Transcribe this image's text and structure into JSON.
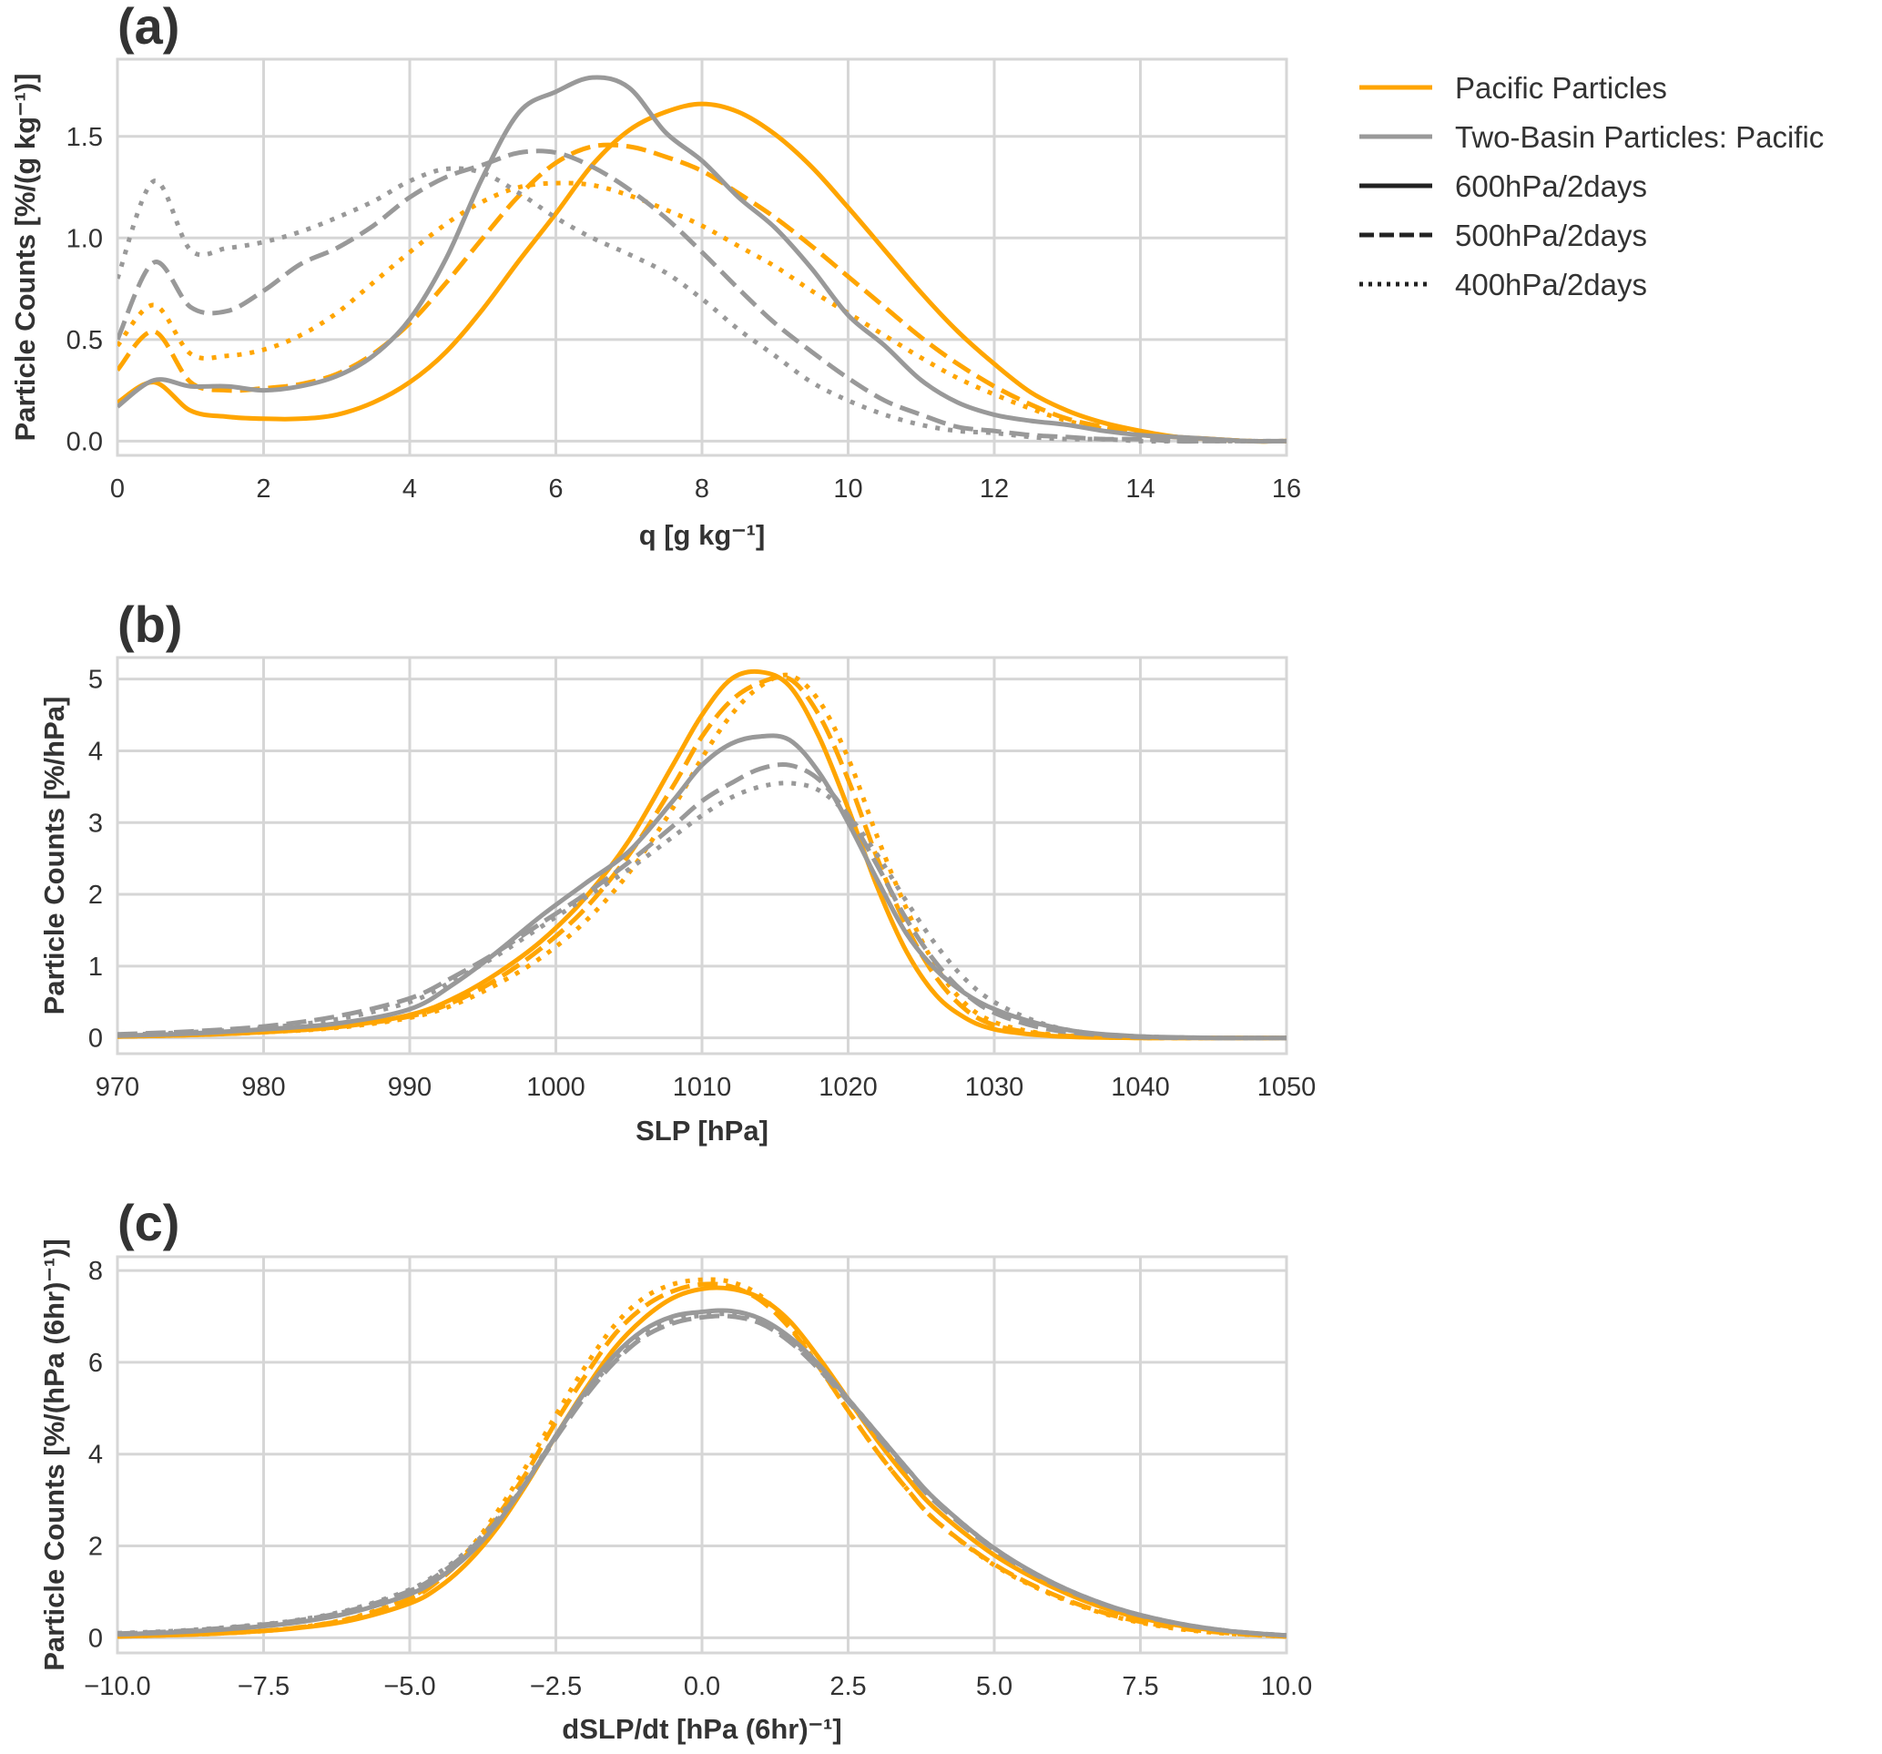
{
  "colors": {
    "pacific": "#FFA500",
    "two_basin": "#999999",
    "legend_style": "#222222",
    "grid": "#d6d6d6"
  },
  "legend": {
    "entries": [
      {
        "label": "Pacific Particles",
        "kind": "color",
        "color": "#FFA500",
        "dash": "solid"
      },
      {
        "label": "Two-Basin Particles: Pacific",
        "kind": "color",
        "color": "#999999",
        "dash": "solid"
      },
      {
        "label": "600hPa/2days",
        "kind": "style",
        "color": "#222222",
        "dash": "solid"
      },
      {
        "label": "500hPa/2days",
        "kind": "style",
        "color": "#222222",
        "dash": "dashed"
      },
      {
        "label": "400hPa/2days",
        "kind": "style",
        "color": "#222222",
        "dash": "dotted"
      }
    ]
  },
  "chart_data": [
    {
      "panel": "(a)",
      "type": "line",
      "xlabel": "q [g kg⁻¹]",
      "ylabel": "Particle Counts [%/(g kg⁻¹)]",
      "xlim": [
        0,
        16
      ],
      "ylim": [
        -0.07,
        1.88
      ],
      "xticks": [
        0,
        2,
        4,
        6,
        8,
        10,
        12,
        14,
        16
      ],
      "xtick_labels": [
        "0",
        "2",
        "4",
        "6",
        "8",
        "10",
        "12",
        "14",
        "16"
      ],
      "yticks": [
        0,
        0.5,
        1.0,
        1.5
      ],
      "ytick_labels": [
        "0.0",
        "0.5",
        "1.0",
        "1.5"
      ],
      "grid": true,
      "x": [
        0,
        0.5,
        1,
        1.5,
        2,
        2.5,
        3,
        3.5,
        4,
        4.5,
        5,
        5.5,
        6,
        6.5,
        7,
        7.5,
        8,
        8.5,
        9,
        9.5,
        10,
        10.5,
        11,
        11.5,
        12,
        12.5,
        13,
        13.5,
        14,
        14.5,
        15,
        15.5,
        16
      ],
      "series": [
        {
          "name": "Pacific 600hPa/2days",
          "group": "pacific",
          "dash": "solid",
          "values": [
            0.19,
            0.29,
            0.15,
            0.12,
            0.11,
            0.11,
            0.13,
            0.19,
            0.29,
            0.44,
            0.65,
            0.89,
            1.12,
            1.36,
            1.53,
            1.62,
            1.66,
            1.62,
            1.51,
            1.35,
            1.15,
            0.94,
            0.73,
            0.54,
            0.38,
            0.24,
            0.15,
            0.09,
            0.05,
            0.02,
            0.01,
            0.0,
            0.0
          ]
        },
        {
          "name": "Pacific 500hPa/2days",
          "group": "pacific",
          "dash": "dashed",
          "values": [
            0.35,
            0.54,
            0.29,
            0.25,
            0.26,
            0.28,
            0.33,
            0.43,
            0.58,
            0.78,
            1.0,
            1.21,
            1.37,
            1.45,
            1.45,
            1.4,
            1.33,
            1.22,
            1.1,
            0.96,
            0.81,
            0.66,
            0.51,
            0.38,
            0.27,
            0.18,
            0.11,
            0.07,
            0.04,
            0.02,
            0.01,
            0.0,
            0.0
          ]
        },
        {
          "name": "Pacific 400hPa/2days",
          "group": "pacific",
          "dash": "dotted",
          "values": [
            0.47,
            0.67,
            0.43,
            0.42,
            0.45,
            0.52,
            0.63,
            0.78,
            0.93,
            1.07,
            1.18,
            1.25,
            1.27,
            1.26,
            1.21,
            1.14,
            1.06,
            0.96,
            0.86,
            0.74,
            0.63,
            0.52,
            0.41,
            0.31,
            0.23,
            0.16,
            0.1,
            0.06,
            0.03,
            0.02,
            0.01,
            0.0,
            0.0
          ]
        },
        {
          "name": "Two-Basin 600hPa/2days",
          "group": "two_basin",
          "dash": "solid",
          "values": [
            0.17,
            0.3,
            0.27,
            0.27,
            0.25,
            0.27,
            0.32,
            0.42,
            0.6,
            0.9,
            1.3,
            1.62,
            1.72,
            1.79,
            1.74,
            1.52,
            1.38,
            1.2,
            1.05,
            0.85,
            0.62,
            0.47,
            0.3,
            0.19,
            0.13,
            0.1,
            0.08,
            0.05,
            0.03,
            0.02,
            0.01,
            0.0,
            0.0
          ]
        },
        {
          "name": "Two-Basin 500hPa/2days",
          "group": "two_basin",
          "dash": "dashed",
          "values": [
            0.5,
            0.88,
            0.66,
            0.64,
            0.74,
            0.87,
            0.95,
            1.06,
            1.2,
            1.3,
            1.36,
            1.42,
            1.42,
            1.35,
            1.24,
            1.1,
            0.93,
            0.75,
            0.58,
            0.44,
            0.31,
            0.2,
            0.13,
            0.07,
            0.05,
            0.03,
            0.02,
            0.01,
            0.01,
            0.0,
            0.0,
            0.0,
            0.0
          ]
        },
        {
          "name": "Two-Basin 400hPa/2days",
          "group": "two_basin",
          "dash": "dotted",
          "values": [
            0.8,
            1.28,
            0.94,
            0.95,
            0.98,
            1.03,
            1.1,
            1.18,
            1.28,
            1.34,
            1.32,
            1.22,
            1.1,
            1.0,
            0.92,
            0.83,
            0.7,
            0.55,
            0.42,
            0.29,
            0.2,
            0.13,
            0.08,
            0.05,
            0.04,
            0.02,
            0.01,
            0.01,
            0.0,
            0.0,
            0.0,
            0.0,
            0.0
          ]
        }
      ]
    },
    {
      "panel": "(b)",
      "type": "line",
      "xlabel": "SLP [hPa]",
      "ylabel": "Particle Counts [%/hPa]",
      "xlim": [
        970,
        1050
      ],
      "ylim": [
        -0.22,
        5.3
      ],
      "xticks": [
        970,
        980,
        990,
        1000,
        1010,
        1020,
        1030,
        1040,
        1050
      ],
      "xtick_labels": [
        "970",
        "980",
        "990",
        "1000",
        "1010",
        "1020",
        "1030",
        "1040",
        "1050"
      ],
      "yticks": [
        0,
        1,
        2,
        3,
        4,
        5
      ],
      "ytick_labels": [
        "0",
        "1",
        "2",
        "3",
        "4",
        "5"
      ],
      "grid": true,
      "x": [
        970,
        975,
        980,
        985,
        990,
        993,
        996,
        999,
        1002,
        1005,
        1008,
        1010,
        1012,
        1014,
        1016,
        1018,
        1020,
        1022,
        1024,
        1026,
        1028,
        1030,
        1033,
        1036,
        1040,
        1045,
        1050
      ],
      "series": [
        {
          "name": "Pacific 600hPa/2days",
          "group": "pacific",
          "dash": "solid",
          "values": [
            0.02,
            0.04,
            0.08,
            0.15,
            0.32,
            0.55,
            0.9,
            1.35,
            1.95,
            2.75,
            3.8,
            4.5,
            5.0,
            5.1,
            4.9,
            4.2,
            3.2,
            2.1,
            1.2,
            0.6,
            0.28,
            0.12,
            0.04,
            0.01,
            0.0,
            0.0,
            0.0
          ]
        },
        {
          "name": "Pacific 500hPa/2days",
          "group": "pacific",
          "dash": "dashed",
          "values": [
            0.02,
            0.04,
            0.08,
            0.15,
            0.3,
            0.5,
            0.82,
            1.25,
            1.8,
            2.55,
            3.5,
            4.2,
            4.7,
            4.95,
            5.0,
            4.5,
            3.6,
            2.5,
            1.55,
            0.85,
            0.4,
            0.18,
            0.06,
            0.02,
            0.0,
            0.0,
            0.0
          ]
        },
        {
          "name": "Pacific 400hPa/2days",
          "group": "pacific",
          "dash": "dotted",
          "values": [
            0.02,
            0.04,
            0.08,
            0.14,
            0.28,
            0.46,
            0.75,
            1.12,
            1.62,
            2.3,
            3.2,
            3.9,
            4.5,
            4.9,
            5.05,
            4.7,
            3.9,
            2.8,
            1.8,
            1.0,
            0.48,
            0.22,
            0.07,
            0.02,
            0.0,
            0.0,
            0.0
          ]
        },
        {
          "name": "Two-Basin 600hPa/2days",
          "group": "two_basin",
          "dash": "solid",
          "values": [
            0.03,
            0.06,
            0.12,
            0.2,
            0.4,
            0.75,
            1.2,
            1.7,
            2.15,
            2.6,
            3.3,
            3.8,
            4.1,
            4.2,
            4.15,
            3.7,
            3.0,
            2.2,
            1.45,
            0.95,
            0.62,
            0.4,
            0.2,
            0.08,
            0.02,
            0.0,
            0.0
          ]
        },
        {
          "name": "Two-Basin 500hPa/2days",
          "group": "two_basin",
          "dash": "dashed",
          "values": [
            0.05,
            0.09,
            0.16,
            0.3,
            0.55,
            0.85,
            1.2,
            1.6,
            2.0,
            2.45,
            2.95,
            3.3,
            3.55,
            3.75,
            3.8,
            3.6,
            3.1,
            2.4,
            1.65,
            1.05,
            0.62,
            0.35,
            0.15,
            0.06,
            0.01,
            0.0,
            0.0
          ]
        },
        {
          "name": "Two-Basin 400hPa/2days",
          "group": "two_basin",
          "dash": "dotted",
          "values": [
            0.04,
            0.08,
            0.14,
            0.26,
            0.5,
            0.8,
            1.15,
            1.55,
            1.95,
            2.35,
            2.8,
            3.1,
            3.35,
            3.5,
            3.55,
            3.45,
            3.1,
            2.55,
            1.9,
            1.3,
            0.82,
            0.5,
            0.22,
            0.08,
            0.02,
            0.0,
            0.0
          ]
        }
      ]
    },
    {
      "panel": "(c)",
      "type": "line",
      "xlabel": "dSLP/dt [hPa (6hr)⁻¹]",
      "ylabel": "Particle Counts [%/(hPa (6hr)⁻¹)]",
      "xlim": [
        -10,
        10
      ],
      "ylim": [
        -0.33,
        8.3
      ],
      "xticks": [
        -10,
        -7.5,
        -5,
        -2.5,
        0,
        2.5,
        5,
        7.5,
        10
      ],
      "xtick_labels": [
        "−10.0",
        "−7.5",
        "−5.0",
        "−2.5",
        "0.0",
        "2.5",
        "5.0",
        "7.5",
        "10.0"
      ],
      "yticks": [
        0,
        2,
        4,
        6,
        8
      ],
      "ytick_labels": [
        "0",
        "2",
        "4",
        "6",
        "8"
      ],
      "grid": true,
      "x": [
        -10,
        -9,
        -8,
        -7,
        -6,
        -5,
        -4.5,
        -4,
        -3.5,
        -3,
        -2.5,
        -2,
        -1.5,
        -1,
        -0.5,
        0,
        0.5,
        1,
        1.5,
        2,
        2.5,
        3,
        3.5,
        4,
        5,
        6,
        7,
        8,
        9,
        10
      ],
      "series": [
        {
          "name": "Pacific 600hPa/2days",
          "group": "pacific",
          "dash": "solid",
          "values": [
            0.03,
            0.06,
            0.11,
            0.2,
            0.38,
            0.75,
            1.1,
            1.65,
            2.4,
            3.35,
            4.4,
            5.4,
            6.3,
            6.95,
            7.4,
            7.6,
            7.6,
            7.4,
            6.9,
            6.1,
            5.2,
            4.3,
            3.5,
            2.8,
            1.8,
            1.1,
            0.6,
            0.3,
            0.13,
            0.04
          ]
        },
        {
          "name": "Pacific 500hPa/2days",
          "group": "pacific",
          "dash": "dashed",
          "values": [
            0.03,
            0.06,
            0.11,
            0.21,
            0.42,
            0.85,
            1.25,
            1.85,
            2.65,
            3.6,
            4.7,
            5.7,
            6.6,
            7.2,
            7.55,
            7.7,
            7.65,
            7.35,
            6.75,
            5.9,
            4.95,
            4.05,
            3.25,
            2.55,
            1.6,
            0.95,
            0.5,
            0.24,
            0.1,
            0.03
          ]
        },
        {
          "name": "Pacific 400hPa/2days",
          "group": "pacific",
          "dash": "dotted",
          "values": [
            0.03,
            0.06,
            0.11,
            0.21,
            0.43,
            0.88,
            1.3,
            1.9,
            2.75,
            3.75,
            4.85,
            5.9,
            6.8,
            7.4,
            7.7,
            7.8,
            7.75,
            7.45,
            6.8,
            5.9,
            4.95,
            4.05,
            3.25,
            2.55,
            1.58,
            0.93,
            0.48,
            0.22,
            0.09,
            0.03
          ]
        },
        {
          "name": "Two-Basin 600hPa/2days",
          "group": "two_basin",
          "dash": "solid",
          "values": [
            0.07,
            0.12,
            0.2,
            0.32,
            0.55,
            0.95,
            1.3,
            1.8,
            2.5,
            3.4,
            4.4,
            5.35,
            6.15,
            6.7,
            7.0,
            7.1,
            7.12,
            6.95,
            6.55,
            5.95,
            5.2,
            4.45,
            3.7,
            3.0,
            1.95,
            1.2,
            0.68,
            0.35,
            0.15,
            0.05
          ]
        },
        {
          "name": "Two-Basin 500hPa/2days",
          "group": "two_basin",
          "dash": "dashed",
          "values": [
            0.09,
            0.14,
            0.23,
            0.36,
            0.6,
            1.02,
            1.38,
            1.88,
            2.55,
            3.4,
            4.35,
            5.25,
            6.0,
            6.55,
            6.85,
            6.98,
            7.0,
            6.85,
            6.45,
            5.85,
            5.15,
            4.4,
            3.65,
            2.95,
            1.92,
            1.18,
            0.67,
            0.34,
            0.15,
            0.05
          ]
        },
        {
          "name": "Two-Basin 400hPa/2days",
          "group": "two_basin",
          "dash": "dotted",
          "values": [
            0.1,
            0.15,
            0.24,
            0.37,
            0.62,
            1.05,
            1.42,
            1.92,
            2.6,
            3.45,
            4.4,
            5.3,
            6.05,
            6.6,
            6.9,
            7.02,
            7.05,
            6.9,
            6.5,
            5.9,
            5.2,
            4.45,
            3.7,
            3.0,
            1.95,
            1.2,
            0.68,
            0.35,
            0.15,
            0.05
          ]
        }
      ]
    }
  ]
}
